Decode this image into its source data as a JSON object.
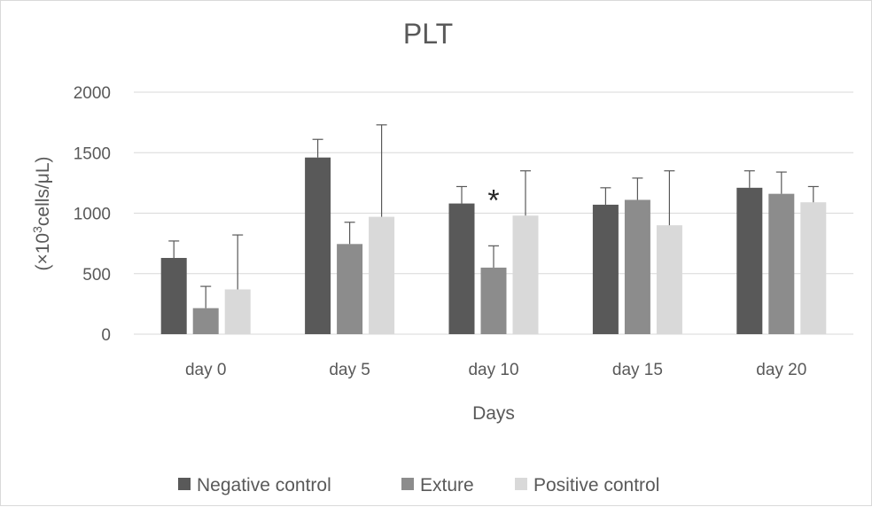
{
  "chart_data": {
    "type": "bar",
    "title": "PLT",
    "xlabel": "Days",
    "ylabel_prefix": "(×10",
    "ylabel_sup": "3",
    "ylabel_suffix": "cells/μL)",
    "ylim": [
      0,
      2000
    ],
    "yticks": [
      0,
      500,
      1000,
      1500,
      2000
    ],
    "grid": true,
    "legend_position": "bottom",
    "categories": [
      "day 0",
      "day 5",
      "day 10",
      "day 15",
      "day 20"
    ],
    "series": [
      {
        "name": "Negative control",
        "color": "#595959",
        "values": [
          630,
          1460,
          1080,
          1070,
          1210
        ],
        "errors": [
          140,
          150,
          140,
          140,
          140
        ]
      },
      {
        "name": "Exture",
        "color": "#8c8c8c",
        "values": [
          215,
          745,
          550,
          1110,
          1160
        ],
        "errors": [
          180,
          180,
          180,
          180,
          180
        ]
      },
      {
        "name": "Positive control",
        "color": "#d9d9d9",
        "values": [
          370,
          970,
          980,
          900,
          1090
        ],
        "errors": [
          450,
          760,
          370,
          450,
          130
        ]
      }
    ],
    "annotations": [
      {
        "text": "*",
        "category": "day 10",
        "series": "Exture"
      }
    ]
  }
}
